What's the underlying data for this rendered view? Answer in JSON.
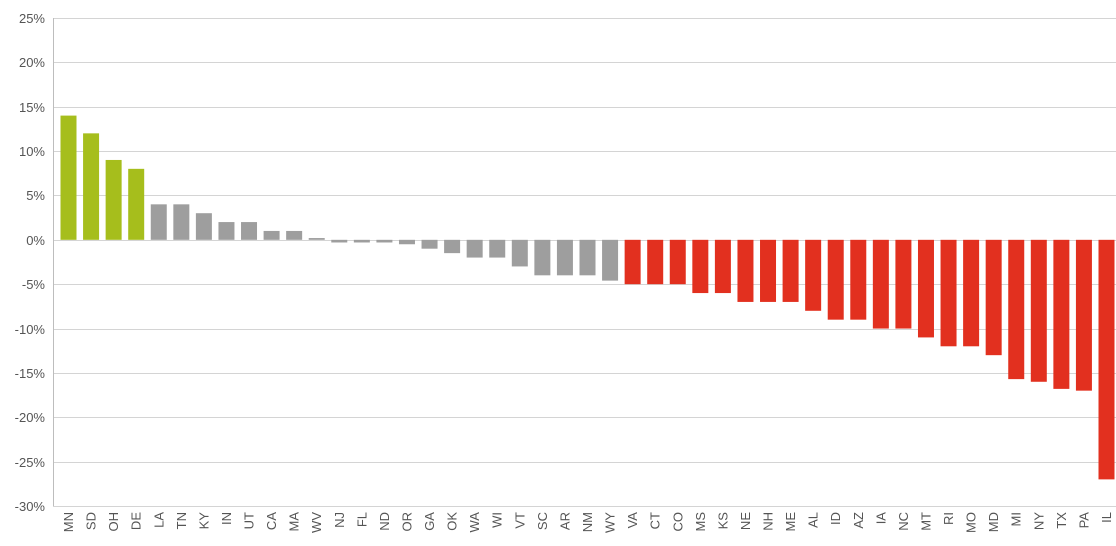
{
  "chart_data": {
    "type": "bar",
    "title": "",
    "xlabel": "",
    "ylabel": "",
    "ylim": [
      -30,
      25
    ],
    "yticks": [
      25,
      20,
      15,
      10,
      5,
      0,
      -5,
      -10,
      -15,
      -20,
      -25,
      -30
    ],
    "ytick_labels": [
      "25%",
      "20%",
      "15%",
      "10%",
      "5%",
      "0%",
      "-5%",
      "-10%",
      "-15%",
      "-20%",
      "-25%",
      "-30%"
    ],
    "grid": true,
    "categories": [
      "MN",
      "SD",
      "OH",
      "DE",
      "LA",
      "TN",
      "KY",
      "IN",
      "UT",
      "CA",
      "MA",
      "WV",
      "NJ",
      "FL",
      "ND",
      "OR",
      "GA",
      "OK",
      "WA",
      "WI",
      "VT",
      "SC",
      "AR",
      "NM",
      "WY",
      "VA",
      "CT",
      "CO",
      "MS",
      "KS",
      "NE",
      "NH",
      "ME",
      "AL",
      "ID",
      "AZ",
      "IA",
      "NC",
      "MT",
      "RI",
      "MO",
      "MD",
      "MI",
      "NY",
      "TX",
      "PA",
      "IL"
    ],
    "values": [
      14,
      12,
      9,
      8,
      4,
      4,
      3,
      2,
      2,
      1,
      1,
      0.2,
      -0.3,
      -0.3,
      -0.3,
      -0.5,
      -1,
      -1.5,
      -2,
      -2,
      -3,
      -4,
      -4,
      -4,
      -4.6,
      -5,
      -5,
      -5,
      -6,
      -6,
      -7,
      -7,
      -7,
      -8,
      -9,
      -9,
      -10,
      -10,
      -11,
      -12,
      -12,
      -13,
      -15.7,
      -16,
      -16.8,
      -17,
      -27
    ],
    "color_groups": [
      "green",
      "green",
      "green",
      "green",
      "gray",
      "gray",
      "gray",
      "gray",
      "gray",
      "gray",
      "gray",
      "gray",
      "gray",
      "gray",
      "gray",
      "gray",
      "gray",
      "gray",
      "gray",
      "gray",
      "gray",
      "gray",
      "gray",
      "gray",
      "gray",
      "red",
      "red",
      "red",
      "red",
      "red",
      "red",
      "red",
      "red",
      "red",
      "red",
      "red",
      "red",
      "red",
      "red",
      "red",
      "red",
      "red",
      "red",
      "red",
      "red",
      "red",
      "red"
    ],
    "colors": {
      "green": "#a6be1c",
      "gray": "#9e9e9e",
      "red": "#e2301f"
    }
  }
}
